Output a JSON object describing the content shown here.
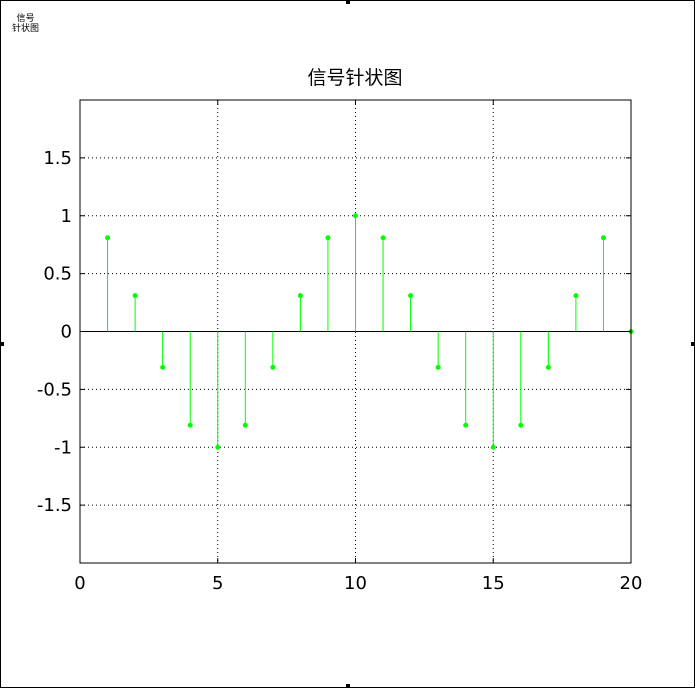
{
  "window": {
    "corner_label_line1": "信号",
    "corner_label_line2": "针状图"
  },
  "chart_data": {
    "type": "stem",
    "title": "信号针状图",
    "xlabel": "",
    "ylabel": "",
    "xlim": [
      0,
      20
    ],
    "ylim": [
      -2,
      2
    ],
    "x_ticks": [
      0,
      5,
      10,
      15,
      20
    ],
    "y_ticks": [
      -1.5,
      -1,
      -0.5,
      0,
      0.5,
      1,
      1.5
    ],
    "x_tick_labels": [
      "0",
      "5",
      "10",
      "15",
      "20"
    ],
    "y_tick_labels": [
      "-1.5",
      "-1",
      "-0.5",
      "0",
      "0.5",
      "1",
      "1.5"
    ],
    "grid": true,
    "series": [
      {
        "color": "#00ff00",
        "x": [
          1,
          2,
          3,
          4,
          5,
          6,
          7,
          8,
          9,
          10,
          11,
          12,
          13,
          14,
          15,
          16,
          17,
          18,
          19,
          20
        ],
        "y": [
          0.81,
          0.31,
          -0.31,
          -0.81,
          -1,
          -0.81,
          -0.31,
          0.31,
          0.81,
          1,
          0.81,
          0.31,
          -0.31,
          -0.81,
          -1,
          -0.81,
          -0.31,
          0.31,
          0.81,
          0
        ]
      }
    ]
  }
}
